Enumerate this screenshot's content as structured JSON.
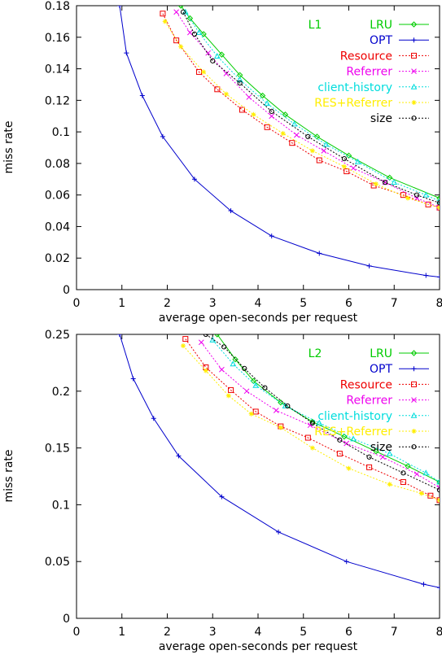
{
  "chart_data": [
    {
      "type": "line",
      "panel_label": "L1",
      "xlabel": "average open-seconds per request",
      "ylabel": "miss rate",
      "xlim": [
        0,
        8
      ],
      "ylim": [
        0,
        0.18
      ],
      "xticks": [
        0,
        1,
        2,
        3,
        4,
        5,
        6,
        7,
        8
      ],
      "yticks": [
        0,
        0.02,
        0.04,
        0.06,
        0.08,
        0.1,
        0.12,
        0.14,
        0.16,
        0.18
      ],
      "xtick_labels": [
        "0",
        "1",
        "2",
        "3",
        "4",
        "5",
        "6",
        "7",
        "8"
      ],
      "ytick_labels": [
        "0",
        "0.02",
        "0.04",
        "0.06",
        "0.08",
        "0.1",
        "0.12",
        "0.14",
        "0.16",
        "0.18"
      ],
      "grid": false,
      "legend_position": "top-right",
      "series": [
        {
          "name": "LRU",
          "color": "#00cc00",
          "dash": "solid",
          "marker": "diamond",
          "x": [
            2.3,
            2.5,
            2.8,
            3.2,
            3.6,
            4.1,
            4.6,
            5.3,
            6.0,
            6.9,
            8.0
          ],
          "y": [
            0.18,
            0.172,
            0.162,
            0.149,
            0.136,
            0.123,
            0.111,
            0.097,
            0.085,
            0.071,
            0.058
          ]
        },
        {
          "name": "OPT",
          "color": "#0000cc",
          "dash": "solid",
          "marker": "plus",
          "x": [
            0.95,
            1.1,
            1.45,
            1.9,
            2.6,
            3.4,
            4.3,
            5.35,
            6.45,
            7.7,
            8.0
          ],
          "y": [
            0.18,
            0.15,
            0.123,
            0.097,
            0.07,
            0.05,
            0.034,
            0.023,
            0.015,
            0.009,
            0.008
          ]
        },
        {
          "name": "Resource",
          "color": "#ee0000",
          "dash": "dot",
          "marker": "square",
          "x": [
            1.9,
            2.2,
            2.7,
            3.1,
            3.65,
            4.2,
            4.75,
            5.35,
            5.95,
            6.55,
            7.2,
            7.75,
            8.0
          ],
          "y": [
            0.175,
            0.158,
            0.138,
            0.127,
            0.114,
            0.103,
            0.093,
            0.082,
            0.075,
            0.066,
            0.06,
            0.054,
            0.052
          ]
        },
        {
          "name": "Referrer",
          "color": "#ee00ee",
          "dash": "dot",
          "marker": "cross",
          "x": [
            2.2,
            2.5,
            2.9,
            3.3,
            3.8,
            4.3,
            4.85,
            5.45,
            6.1,
            6.8,
            7.5,
            8.0
          ],
          "y": [
            0.176,
            0.163,
            0.15,
            0.137,
            0.122,
            0.11,
            0.098,
            0.088,
            0.077,
            0.068,
            0.058,
            0.052
          ]
        },
        {
          "name": "client-history",
          "color": "#00dddd",
          "dash": "dot",
          "marker": "triangle",
          "x": [
            2.4,
            2.7,
            3.1,
            3.6,
            4.2,
            4.8,
            5.5,
            6.2,
            7.0,
            7.7,
            8.0
          ],
          "y": [
            0.176,
            0.163,
            0.148,
            0.133,
            0.118,
            0.105,
            0.092,
            0.081,
            0.068,
            0.06,
            0.056
          ]
        },
        {
          "name": "RES+Referrer",
          "color": "#ffee00",
          "dash": "dot",
          "marker": "asterisk",
          "x": [
            1.95,
            2.3,
            2.8,
            3.3,
            3.9,
            4.55,
            5.2,
            5.9,
            6.6,
            7.3,
            8.0
          ],
          "y": [
            0.17,
            0.154,
            0.138,
            0.124,
            0.111,
            0.099,
            0.088,
            0.078,
            0.067,
            0.058,
            0.052
          ]
        },
        {
          "name": "size",
          "color": "#000000",
          "dash": "dot",
          "marker": "octagon",
          "x": [
            2.35,
            2.6,
            3.0,
            3.6,
            4.3,
            5.1,
            5.9,
            6.8,
            7.5,
            8.0
          ],
          "y": [
            0.176,
            0.162,
            0.145,
            0.131,
            0.113,
            0.097,
            0.083,
            0.068,
            0.06,
            0.055
          ]
        }
      ]
    },
    {
      "type": "line",
      "panel_label": "L2",
      "xlabel": "average open-seconds per request",
      "ylabel": "miss rate",
      "xlim": [
        0,
        8
      ],
      "ylim": [
        0,
        0.25
      ],
      "xticks": [
        0,
        1,
        2,
        3,
        4,
        5,
        6,
        7,
        8
      ],
      "yticks": [
        0,
        0.05,
        0.1,
        0.15,
        0.2,
        0.25
      ],
      "xtick_labels": [
        "0",
        "1",
        "2",
        "3",
        "4",
        "5",
        "6",
        "7",
        "8"
      ],
      "ytick_labels": [
        "0",
        "0.05",
        "0.1",
        "0.15",
        "0.2",
        "0.25"
      ],
      "grid": false,
      "legend_position": "top-right",
      "series": [
        {
          "name": "LRU",
          "color": "#00cc00",
          "dash": "solid",
          "marker": "diamond",
          "x": [
            3.1,
            3.5,
            3.9,
            4.5,
            5.2,
            5.9,
            6.6,
            7.3,
            8.0
          ],
          "y": [
            0.25,
            0.228,
            0.209,
            0.19,
            0.173,
            0.16,
            0.147,
            0.134,
            0.12
          ]
        },
        {
          "name": "OPT",
          "color": "#0000cc",
          "dash": "solid",
          "marker": "plus",
          "x": [
            0.95,
            1.25,
            1.7,
            2.25,
            3.2,
            4.45,
            5.95,
            7.65,
            8.0
          ],
          "y": [
            0.25,
            0.211,
            0.176,
            0.143,
            0.107,
            0.076,
            0.05,
            0.03,
            0.027
          ]
        },
        {
          "name": "Resource",
          "color": "#ee0000",
          "dash": "dot",
          "marker": "square",
          "x": [
            2.4,
            2.85,
            3.4,
            3.95,
            4.5,
            5.1,
            5.8,
            6.45,
            7.2,
            7.8,
            8.0
          ],
          "y": [
            0.246,
            0.221,
            0.201,
            0.182,
            0.169,
            0.159,
            0.145,
            0.133,
            0.12,
            0.108,
            0.104
          ]
        },
        {
          "name": "Referrer",
          "color": "#ee00ee",
          "dash": "dot",
          "marker": "cross",
          "x": [
            2.75,
            3.2,
            3.75,
            4.4,
            5.15,
            5.95,
            6.75,
            7.5,
            8.0
          ],
          "y": [
            0.243,
            0.219,
            0.2,
            0.183,
            0.17,
            0.154,
            0.142,
            0.127,
            0.115
          ]
        },
        {
          "name": "client-history",
          "color": "#00dddd",
          "dash": "dot",
          "marker": "triangle",
          "x": [
            3.0,
            3.45,
            3.95,
            4.6,
            5.35,
            6.1,
            6.9,
            7.7,
            8.0
          ],
          "y": [
            0.245,
            0.224,
            0.205,
            0.187,
            0.172,
            0.158,
            0.145,
            0.128,
            0.12
          ]
        },
        {
          "name": "RES+Referrer",
          "color": "#ffee00",
          "dash": "dot",
          "marker": "asterisk",
          "x": [
            2.35,
            2.85,
            3.35,
            3.85,
            4.5,
            5.2,
            6.0,
            6.9,
            7.6,
            8.0
          ],
          "y": [
            0.24,
            0.218,
            0.196,
            0.18,
            0.168,
            0.15,
            0.132,
            0.118,
            0.11,
            0.104
          ]
        },
        {
          "name": "size",
          "color": "#000000",
          "dash": "dot",
          "marker": "octagon",
          "x": [
            2.85,
            3.25,
            3.7,
            4.15,
            4.65,
            5.2,
            5.8,
            6.45,
            7.2,
            8.0
          ],
          "y": [
            0.25,
            0.239,
            0.22,
            0.203,
            0.187,
            0.172,
            0.157,
            0.142,
            0.128,
            0.113
          ]
        }
      ]
    }
  ]
}
